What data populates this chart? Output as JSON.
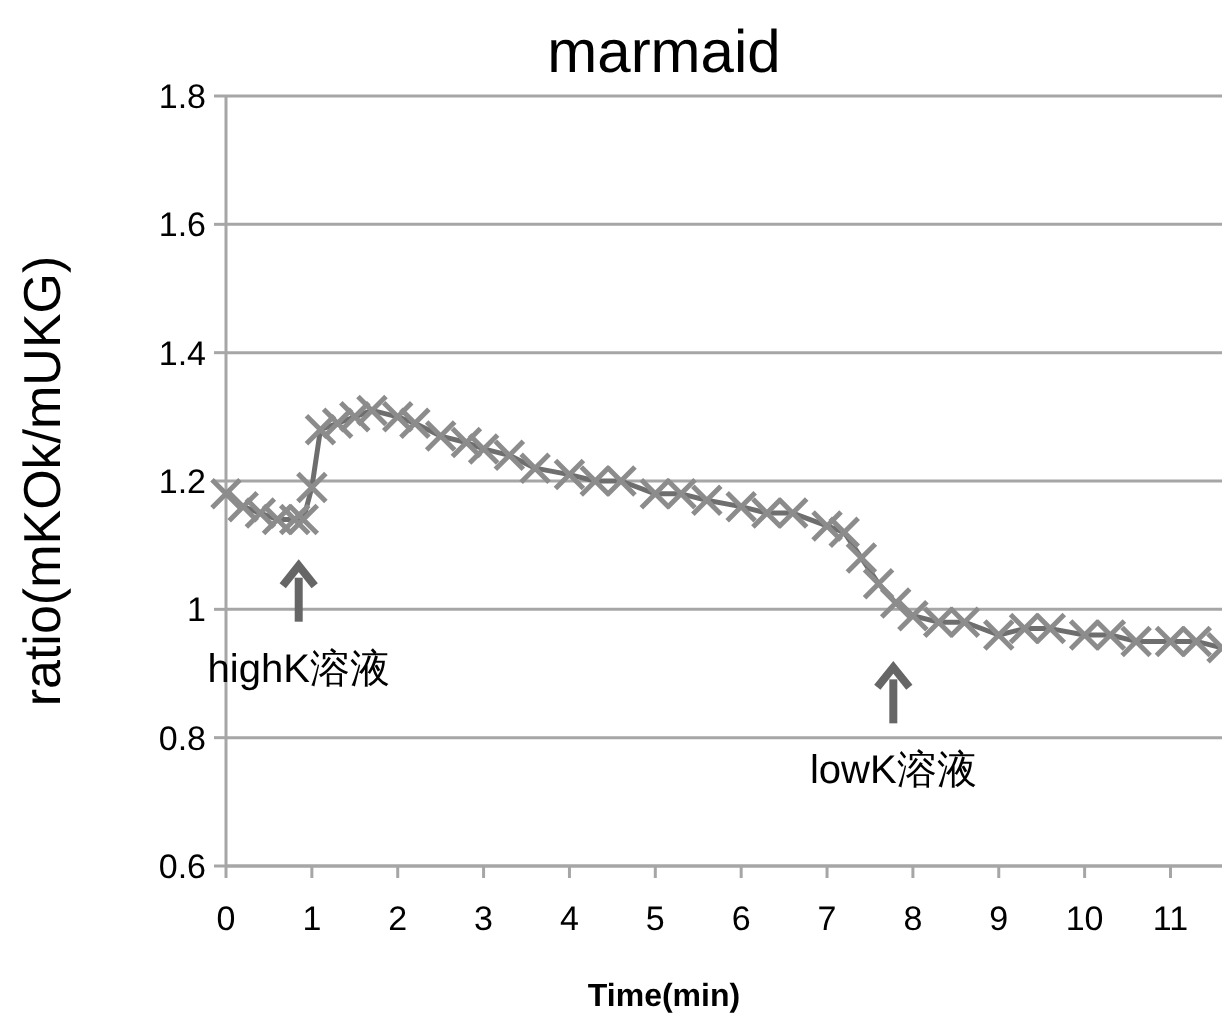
{
  "chart_data": {
    "type": "line",
    "title": "marmaid",
    "xlabel": "Time(min)",
    "ylabel": "ratio(mKOk/mUKG)",
    "xlim": [
      0,
      11.6
    ],
    "xticks": [
      0,
      1,
      2,
      3,
      4,
      5,
      6,
      7,
      8,
      9,
      10,
      11
    ],
    "ylim": [
      0.6,
      1.8
    ],
    "yticks": [
      0.6,
      0.8,
      1,
      1.2,
      1.4,
      1.6,
      1.8
    ],
    "grid": "y",
    "marker": "cross",
    "line_style": "solid",
    "series": [
      {
        "color": "#8c8c8c",
        "x": [
          0,
          0.2,
          0.4,
          0.6,
          0.8,
          0.9,
          1.0,
          1.1,
          1.3,
          1.5,
          1.7,
          2.0,
          2.2,
          2.5,
          2.8,
          3.0,
          3.3,
          3.6,
          4.0,
          4.3,
          4.6,
          5.0,
          5.3,
          5.6,
          6.0,
          6.3,
          6.6,
          7.0,
          7.2,
          7.4,
          7.6,
          7.8,
          8.0,
          8.3,
          8.6,
          9.0,
          9.3,
          9.6,
          10.0,
          10.3,
          10.6,
          11.0,
          11.3,
          11.6
        ],
        "values": [
          1.18,
          1.16,
          1.15,
          1.14,
          1.14,
          1.14,
          1.19,
          1.28,
          1.29,
          1.3,
          1.31,
          1.3,
          1.29,
          1.27,
          1.26,
          1.25,
          1.24,
          1.22,
          1.21,
          1.2,
          1.2,
          1.18,
          1.18,
          1.17,
          1.16,
          1.15,
          1.15,
          1.13,
          1.12,
          1.08,
          1.04,
          1.01,
          0.99,
          0.98,
          0.98,
          0.96,
          0.97,
          0.97,
          0.96,
          0.96,
          0.95,
          0.95,
          0.95,
          0.94
        ]
      }
    ],
    "annotations": [
      "highK溶液",
      "lowK溶液"
    ]
  }
}
